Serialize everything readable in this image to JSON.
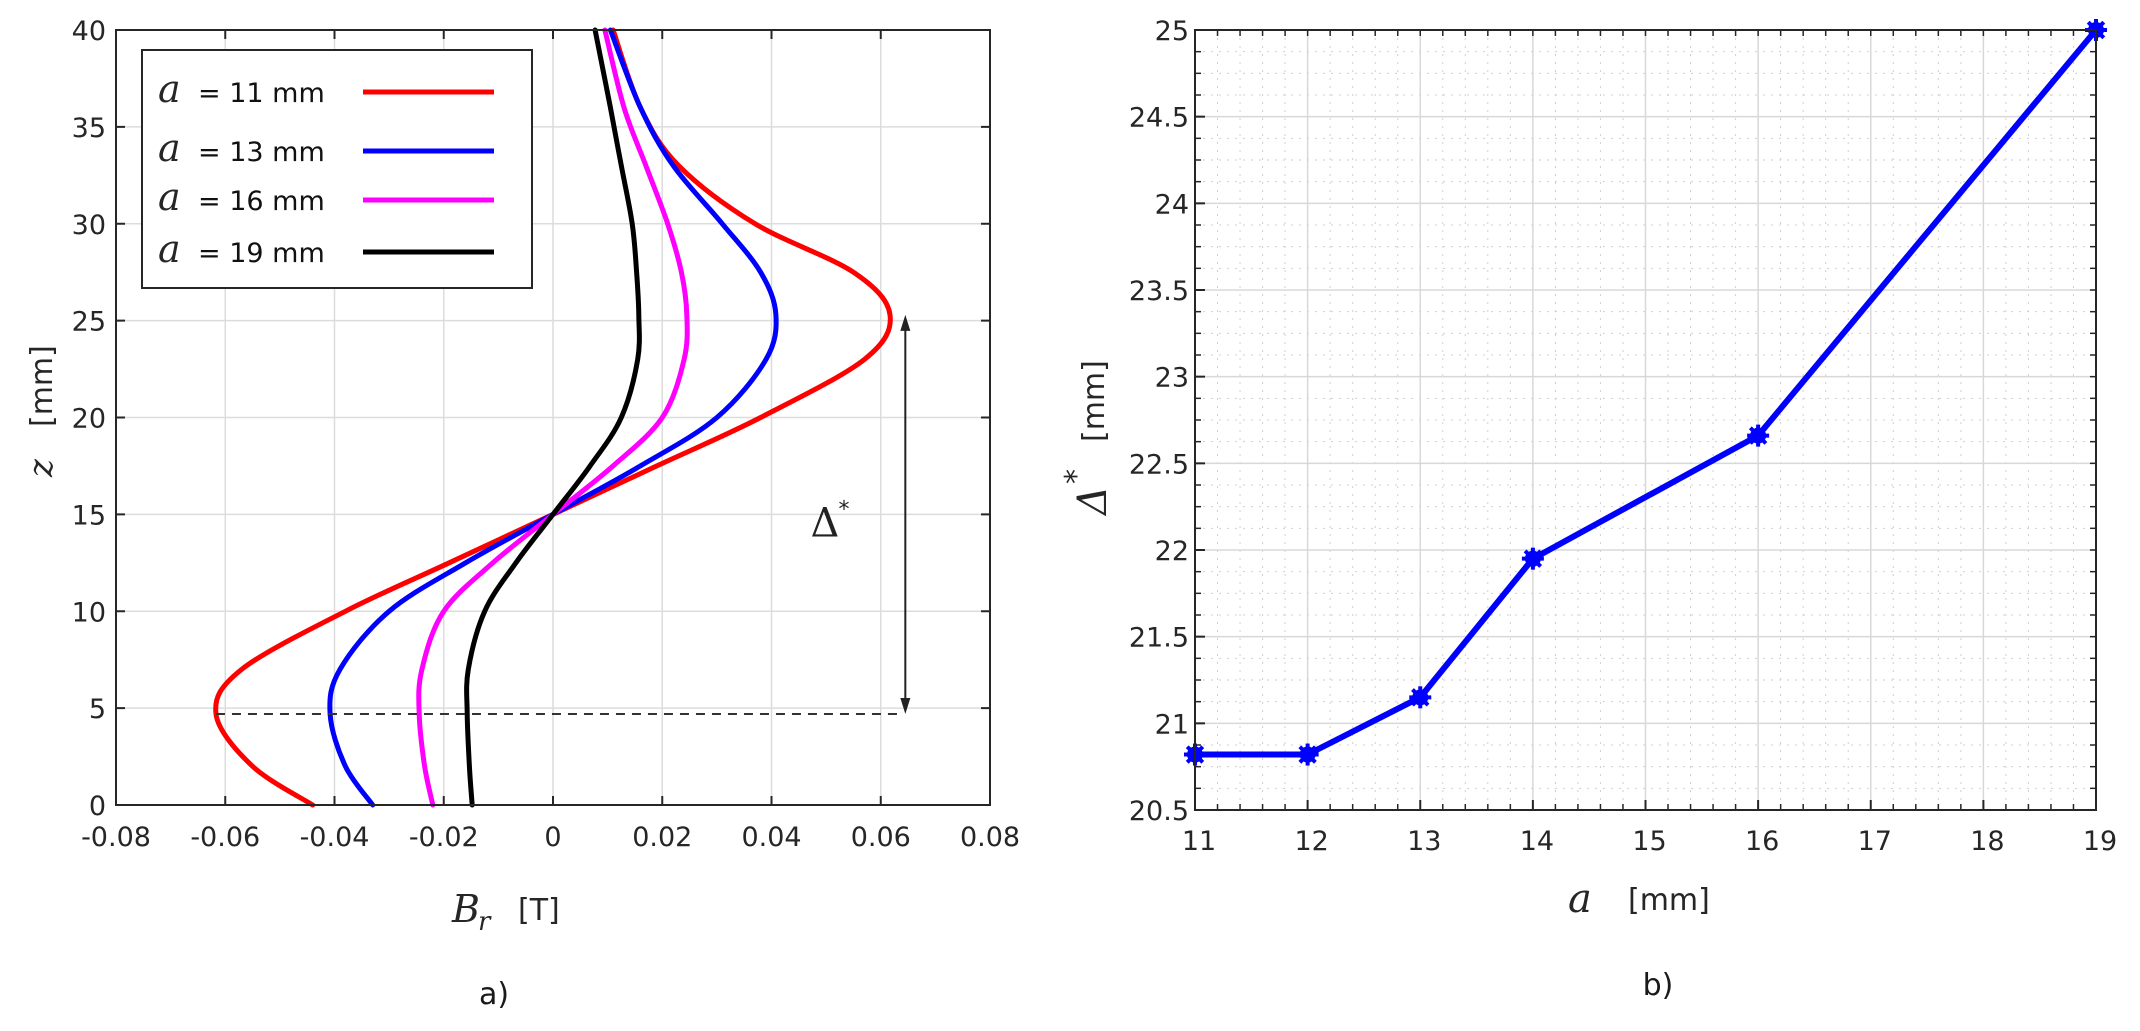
{
  "chart_data": [
    {
      "id": "a",
      "type": "line",
      "caption": "a)",
      "title": "",
      "xlabel": "B_r",
      "xlabel_symbol": "B",
      "xlabel_sub": "r",
      "xlabel_unit": "[T]",
      "ylabel": "z",
      "ylabel_unit": "[mm]",
      "xlim": [
        -0.08,
        0.08
      ],
      "ylim": [
        0,
        40
      ],
      "xticks": [
        -0.08,
        -0.06,
        -0.04,
        -0.02,
        0,
        0.02,
        0.04,
        0.06,
        0.08
      ],
      "xtick_labels": [
        "-0.08",
        "-0.06",
        "-0.04",
        "-0.02",
        "0",
        "0.02",
        "0.04",
        "0.06",
        "0.08"
      ],
      "yticks": [
        0,
        5,
        10,
        15,
        20,
        25,
        30,
        35,
        40
      ],
      "ytick_labels": [
        "0",
        "5",
        "10",
        "15",
        "20",
        "25",
        "30",
        "35",
        "40"
      ],
      "grid": true,
      "legend_position": "upper left",
      "legend": [
        {
          "symbol": "a",
          "label": "= 11 mm",
          "color": "#ff0000"
        },
        {
          "symbol": "a",
          "label": "= 13 mm",
          "color": "#0000ff"
        },
        {
          "symbol": "a",
          "label": "= 16 mm",
          "color": "#ff00ff"
        },
        {
          "symbol": "a",
          "label": "= 19 mm",
          "color": "#000000"
        }
      ],
      "series": [
        {
          "name": "a = 11 mm",
          "color": "#ff0000",
          "z": [
            0,
            2,
            4.7,
            7,
            10,
            12.5,
            15,
            17.5,
            20,
            23,
            25.3,
            27.5,
            30,
            33,
            36,
            40
          ],
          "Br": [
            -0.044,
            -0.055,
            -0.0617,
            -0.057,
            -0.038,
            -0.019,
            0,
            0.019,
            0.038,
            0.057,
            0.0617,
            0.055,
            0.037,
            0.023,
            0.016,
            0.011
          ]
        },
        {
          "name": "a = 13 mm",
          "color": "#0000ff",
          "z": [
            0,
            2,
            4.7,
            7,
            10,
            12.5,
            15,
            17.5,
            20,
            23,
            25.3,
            27.5,
            30,
            33,
            36,
            40
          ],
          "Br": [
            -0.033,
            -0.038,
            -0.0408,
            -0.039,
            -0.03,
            -0.016,
            0,
            0.016,
            0.03,
            0.039,
            0.0408,
            0.038,
            0.031,
            0.022,
            0.016,
            0.0105
          ]
        },
        {
          "name": "a = 16 mm",
          "color": "#ff00ff",
          "z": [
            0,
            2,
            4.7,
            7,
            10,
            12.5,
            15,
            17.5,
            20,
            23,
            25.3,
            27.5,
            30,
            33,
            36,
            40
          ],
          "Br": [
            -0.022,
            -0.0235,
            -0.0245,
            -0.024,
            -0.02,
            -0.011,
            0,
            0.011,
            0.02,
            0.024,
            0.0245,
            0.0235,
            0.021,
            0.017,
            0.013,
            0.0095
          ]
        },
        {
          "name": "a = 19 mm",
          "color": "#000000",
          "z": [
            0,
            2,
            4.7,
            7,
            10,
            12.5,
            15,
            17.5,
            20,
            23,
            25.3,
            27.5,
            30,
            33,
            36,
            40
          ],
          "Br": [
            -0.0148,
            -0.0153,
            -0.0157,
            -0.0155,
            -0.0125,
            -0.0068,
            0,
            0.0068,
            0.0125,
            0.0155,
            0.0157,
            0.0153,
            0.0145,
            0.0125,
            0.0105,
            0.0077
          ]
        }
      ],
      "annotations": [
        {
          "type": "dashed-hline",
          "z": 4.7,
          "x_from": -0.0617,
          "x_to": 0.063
        },
        {
          "type": "double-arrow",
          "x": 0.0645,
          "z_from": 4.7,
          "z_to": 25.3
        },
        {
          "type": "text",
          "text": "Δ*",
          "symbol": "Δ",
          "superscript": "*",
          "x": 0.0475,
          "z": 15
        }
      ]
    },
    {
      "id": "b",
      "type": "line",
      "caption": "b)",
      "title": "",
      "xlabel": "a",
      "xlabel_symbol": "a",
      "xlabel_unit": "[mm]",
      "ylabel": "Δ*",
      "ylabel_symbol": "Δ",
      "ylabel_sup": "*",
      "ylabel_unit": "[mm]",
      "xlim": [
        11,
        19
      ],
      "ylim": [
        20.5,
        25
      ],
      "xticks": [
        11,
        12,
        13,
        14,
        15,
        16,
        17,
        18,
        19
      ],
      "xtick_labels": [
        "11",
        "12",
        "13",
        "14",
        "15",
        "16",
        "17",
        "18",
        "19"
      ],
      "yticks": [
        20.5,
        21,
        21.5,
        22,
        22.5,
        23,
        23.5,
        24,
        24.5,
        25
      ],
      "ytick_labels": [
        "20.5",
        "21",
        "21.5",
        "22",
        "22.5",
        "23",
        "23.5",
        "24",
        "24.5",
        "25"
      ],
      "grid": true,
      "minor_grid": true,
      "series": [
        {
          "name": "Δ* vs a",
          "color": "#0000ff",
          "marker": "*",
          "x": [
            11,
            12,
            13,
            14,
            16,
            19
          ],
          "y": [
            20.82,
            20.82,
            21.15,
            21.95,
            22.66,
            25.0
          ]
        }
      ]
    }
  ]
}
